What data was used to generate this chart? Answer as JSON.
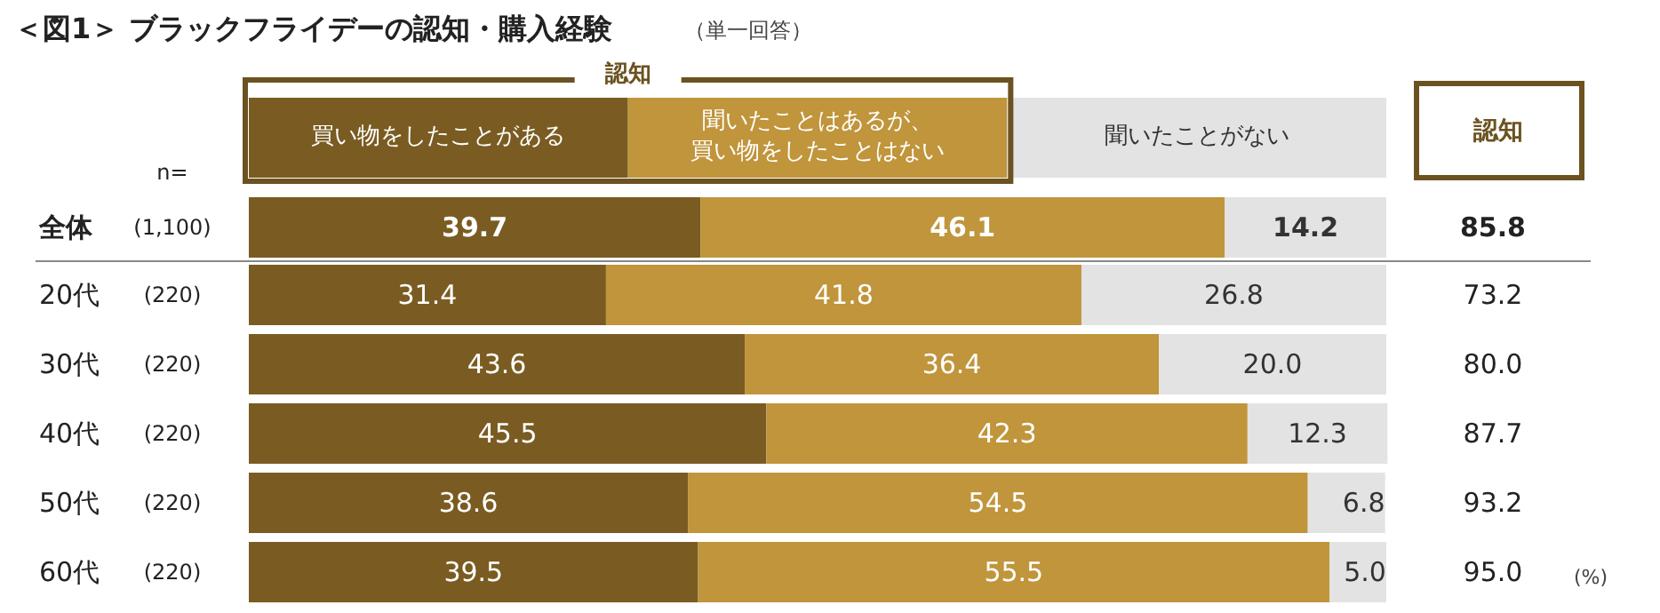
{
  "chart_data": {
    "type": "bar",
    "orientation": "horizontal",
    "stacked": true,
    "legend": "top",
    "title": "＜図1＞ ブラックフライデーの認知・購入経験",
    "subtitle": "（単一回答）",
    "categories": [
      "全体",
      "20代",
      "30代",
      "40代",
      "50代",
      "60代"
    ],
    "series": [
      {
        "name": "買い物をしたことがある",
        "color": "#7a5c22",
        "values": [
          39.7,
          31.4,
          43.6,
          45.5,
          38.6,
          39.5
        ],
        "value_labels": [
          "39.7",
          "31.4",
          "43.6",
          "45.5",
          "38.6",
          "39.5"
        ]
      },
      {
        "name": "聞いたことはあるが、買い物をしたことはない",
        "color": "#c0953b",
        "values": [
          46.1,
          41.8,
          36.4,
          42.3,
          54.5,
          55.5
        ],
        "value_labels": [
          "46.1",
          "41.8",
          "36.4",
          "42.3",
          "54.5",
          "55.5"
        ]
      },
      {
        "name": "聞いたことがない",
        "color": "#e3e3e3",
        "values": [
          14.2,
          26.8,
          20.0,
          12.3,
          6.8,
          5.0
        ],
        "value_labels": [
          "14.2",
          "26.8",
          "20.0",
          "12.3",
          "6.8",
          "5.0"
        ]
      }
    ],
    "annotations": [
      "n=",
      "認知",
      "認知",
      "(%)",
      "(1,100)",
      "(220)",
      "(220)",
      "(220)",
      "(220)",
      "(220)",
      "85.8",
      "73.2",
      "80.0",
      "87.7",
      "93.2",
      "95.0"
    ]
  }
}
